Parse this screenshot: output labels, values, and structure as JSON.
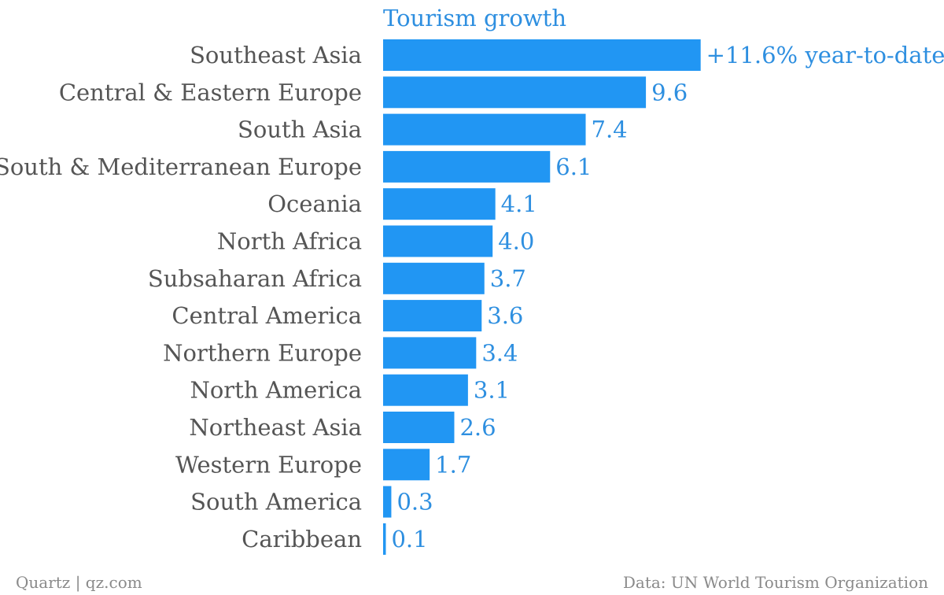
{
  "chart_data": {
    "type": "bar",
    "orientation": "horizontal",
    "title": "Tourism growth",
    "categories": [
      "Southeast Asia",
      "Central & Eastern Europe",
      "South Asia",
      "South & Mediterranean Europe",
      "Oceania",
      "North Africa",
      "Subsaharan Africa",
      "Central America",
      "Northern Europe",
      "North America",
      "Northeast Asia",
      "Western Europe",
      "South America",
      "Caribbean"
    ],
    "values": [
      11.6,
      9.6,
      7.4,
      6.1,
      4.1,
      4.0,
      3.7,
      3.6,
      3.4,
      3.1,
      2.6,
      1.7,
      0.3,
      0.1
    ],
    "data_labels": [
      "+11.6% year-to-date",
      "9.6",
      "7.4",
      "6.1",
      "4.1",
      "4.0",
      "3.7",
      "3.6",
      "3.4",
      "3.1",
      "2.6",
      "1.7",
      "0.3",
      "0.1"
    ],
    "xlim": [
      0,
      11.6
    ],
    "grid": false,
    "legend": "none",
    "colors": {
      "bar": "#2196f3",
      "label": "#2e8fe0",
      "category": "#555555"
    }
  },
  "footer": {
    "left": "Quartz | qz.com",
    "right": "Data: UN World Tourism Organization"
  }
}
